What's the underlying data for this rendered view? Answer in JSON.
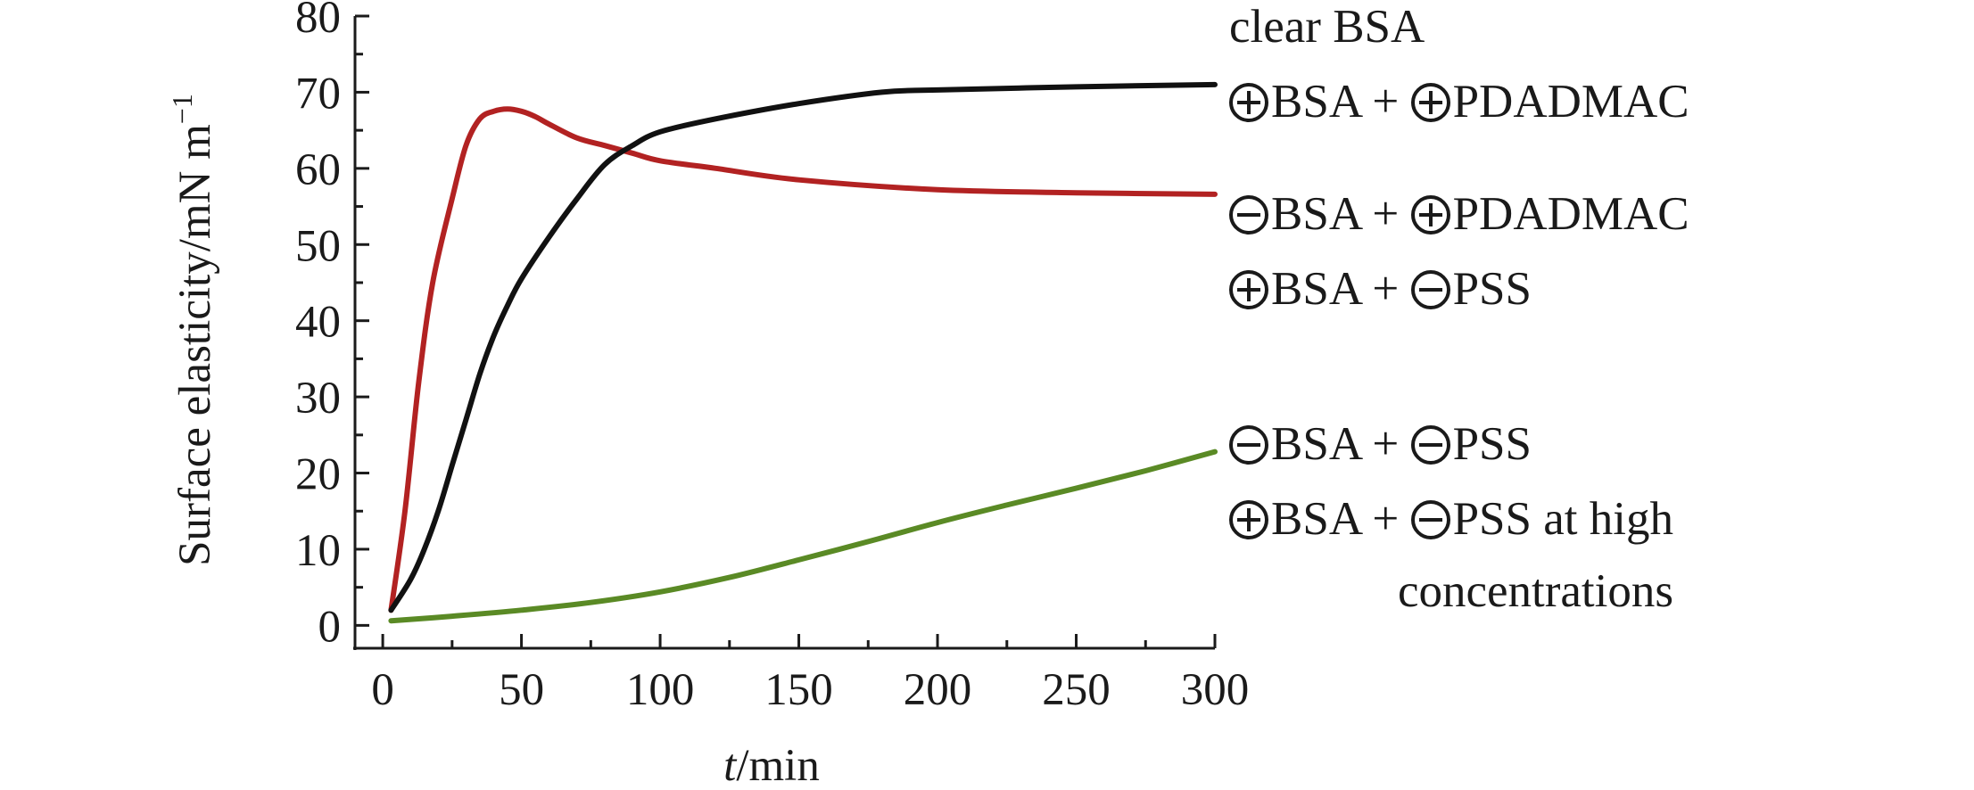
{
  "chart_data": {
    "type": "line",
    "xlabel_italic": "t",
    "xlabel_rest": "/min",
    "ylabel": "Surface elasticity/mN m",
    "ylabel_sup": "−1",
    "xlim": [
      -10,
      300
    ],
    "ylim": [
      -3,
      80
    ],
    "xticks": [
      0,
      50,
      100,
      150,
      200,
      250,
      300
    ],
    "yticks": [
      0,
      10,
      20,
      30,
      40,
      50,
      60,
      70,
      80
    ],
    "grid": false,
    "legend_placement": "right, outside plot",
    "series": [
      {
        "color": "#b22222",
        "x": [
          3,
          8,
          13,
          18,
          25,
          30,
          35,
          40,
          45,
          50,
          55,
          60,
          70,
          80,
          90,
          100,
          120,
          150,
          200,
          250,
          300
        ],
        "y": [
          2,
          15,
          32,
          45,
          56,
          63,
          66.5,
          67.5,
          67.8,
          67.5,
          66.8,
          65.8,
          64,
          63,
          62,
          61,
          60,
          58.5,
          57.2,
          56.8,
          56.6
        ]
      },
      {
        "color": "#111111",
        "x": [
          3,
          10,
          15,
          20,
          25,
          30,
          35,
          40,
          45,
          50,
          60,
          70,
          80,
          90,
          100,
          120,
          150,
          180,
          200,
          250,
          300
        ],
        "y": [
          2,
          6,
          10,
          15,
          21,
          27,
          33,
          38,
          42,
          45.5,
          51,
          56,
          60.5,
          63,
          64.8,
          66.5,
          68.5,
          70,
          70.3,
          70.7,
          71
        ]
      },
      {
        "color": "#5a8a25",
        "x": [
          3,
          25,
          50,
          75,
          100,
          125,
          150,
          175,
          200,
          225,
          250,
          275,
          300
        ],
        "y": [
          0.6,
          1.2,
          2,
          3,
          4.4,
          6.3,
          8.6,
          11,
          13.5,
          15.8,
          18,
          20.3,
          22.8
        ]
      }
    ],
    "legend": [
      {
        "lines": [
          [
            {
              "text": "clear BSA"
            }
          ]
        ]
      },
      {
        "lines": [
          [
            {
              "charge": "plus"
            },
            {
              "text": "BSA + "
            },
            {
              "charge": "plus"
            },
            {
              "text": "PDADMAC"
            }
          ]
        ]
      },
      {
        "lines": [
          [
            {
              "charge": "minus"
            },
            {
              "text": "BSA + "
            },
            {
              "charge": "plus"
            },
            {
              "text": "PDADMAC"
            }
          ]
        ]
      },
      {
        "lines": [
          [
            {
              "charge": "plus"
            },
            {
              "text": "BSA + "
            },
            {
              "charge": "minus"
            },
            {
              "text": "PSS"
            }
          ]
        ]
      },
      {
        "lines": [
          [
            {
              "charge": "minus"
            },
            {
              "text": "BSA + "
            },
            {
              "charge": "minus"
            },
            {
              "text": "PSS"
            }
          ]
        ]
      },
      {
        "lines": [
          [
            {
              "charge": "plus"
            },
            {
              "text": "BSA + "
            },
            {
              "charge": "minus"
            },
            {
              "text": "PSS at high"
            }
          ],
          [
            {
              "text": "concentrations"
            }
          ]
        ]
      }
    ]
  }
}
